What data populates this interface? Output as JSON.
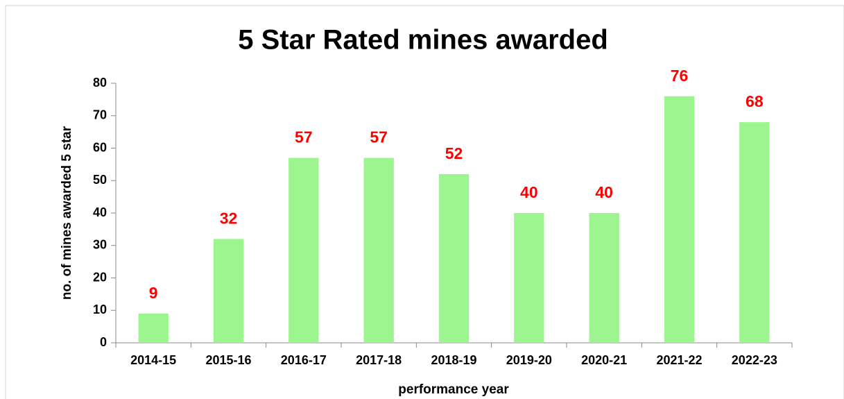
{
  "chart_data": {
    "type": "bar",
    "title": "5 Star Rated mines awarded",
    "x_label": "performance year",
    "y_label": "no. of mines awarded 5 star",
    "categories": [
      "2014-15",
      "2015-16",
      "2016-17",
      "2017-18",
      "2018-19",
      "2019-20",
      "2020-21",
      "2021-22",
      "2022-23"
    ],
    "values": [
      9,
      32,
      57,
      57,
      52,
      40,
      40,
      76,
      68
    ],
    "color": "#9cf58e",
    "label_color": "#ff0000",
    "ylim": [
      0,
      80
    ],
    "yticks": [
      0,
      10,
      20,
      30,
      40,
      50,
      60,
      70,
      80
    ],
    "grid": false
  }
}
